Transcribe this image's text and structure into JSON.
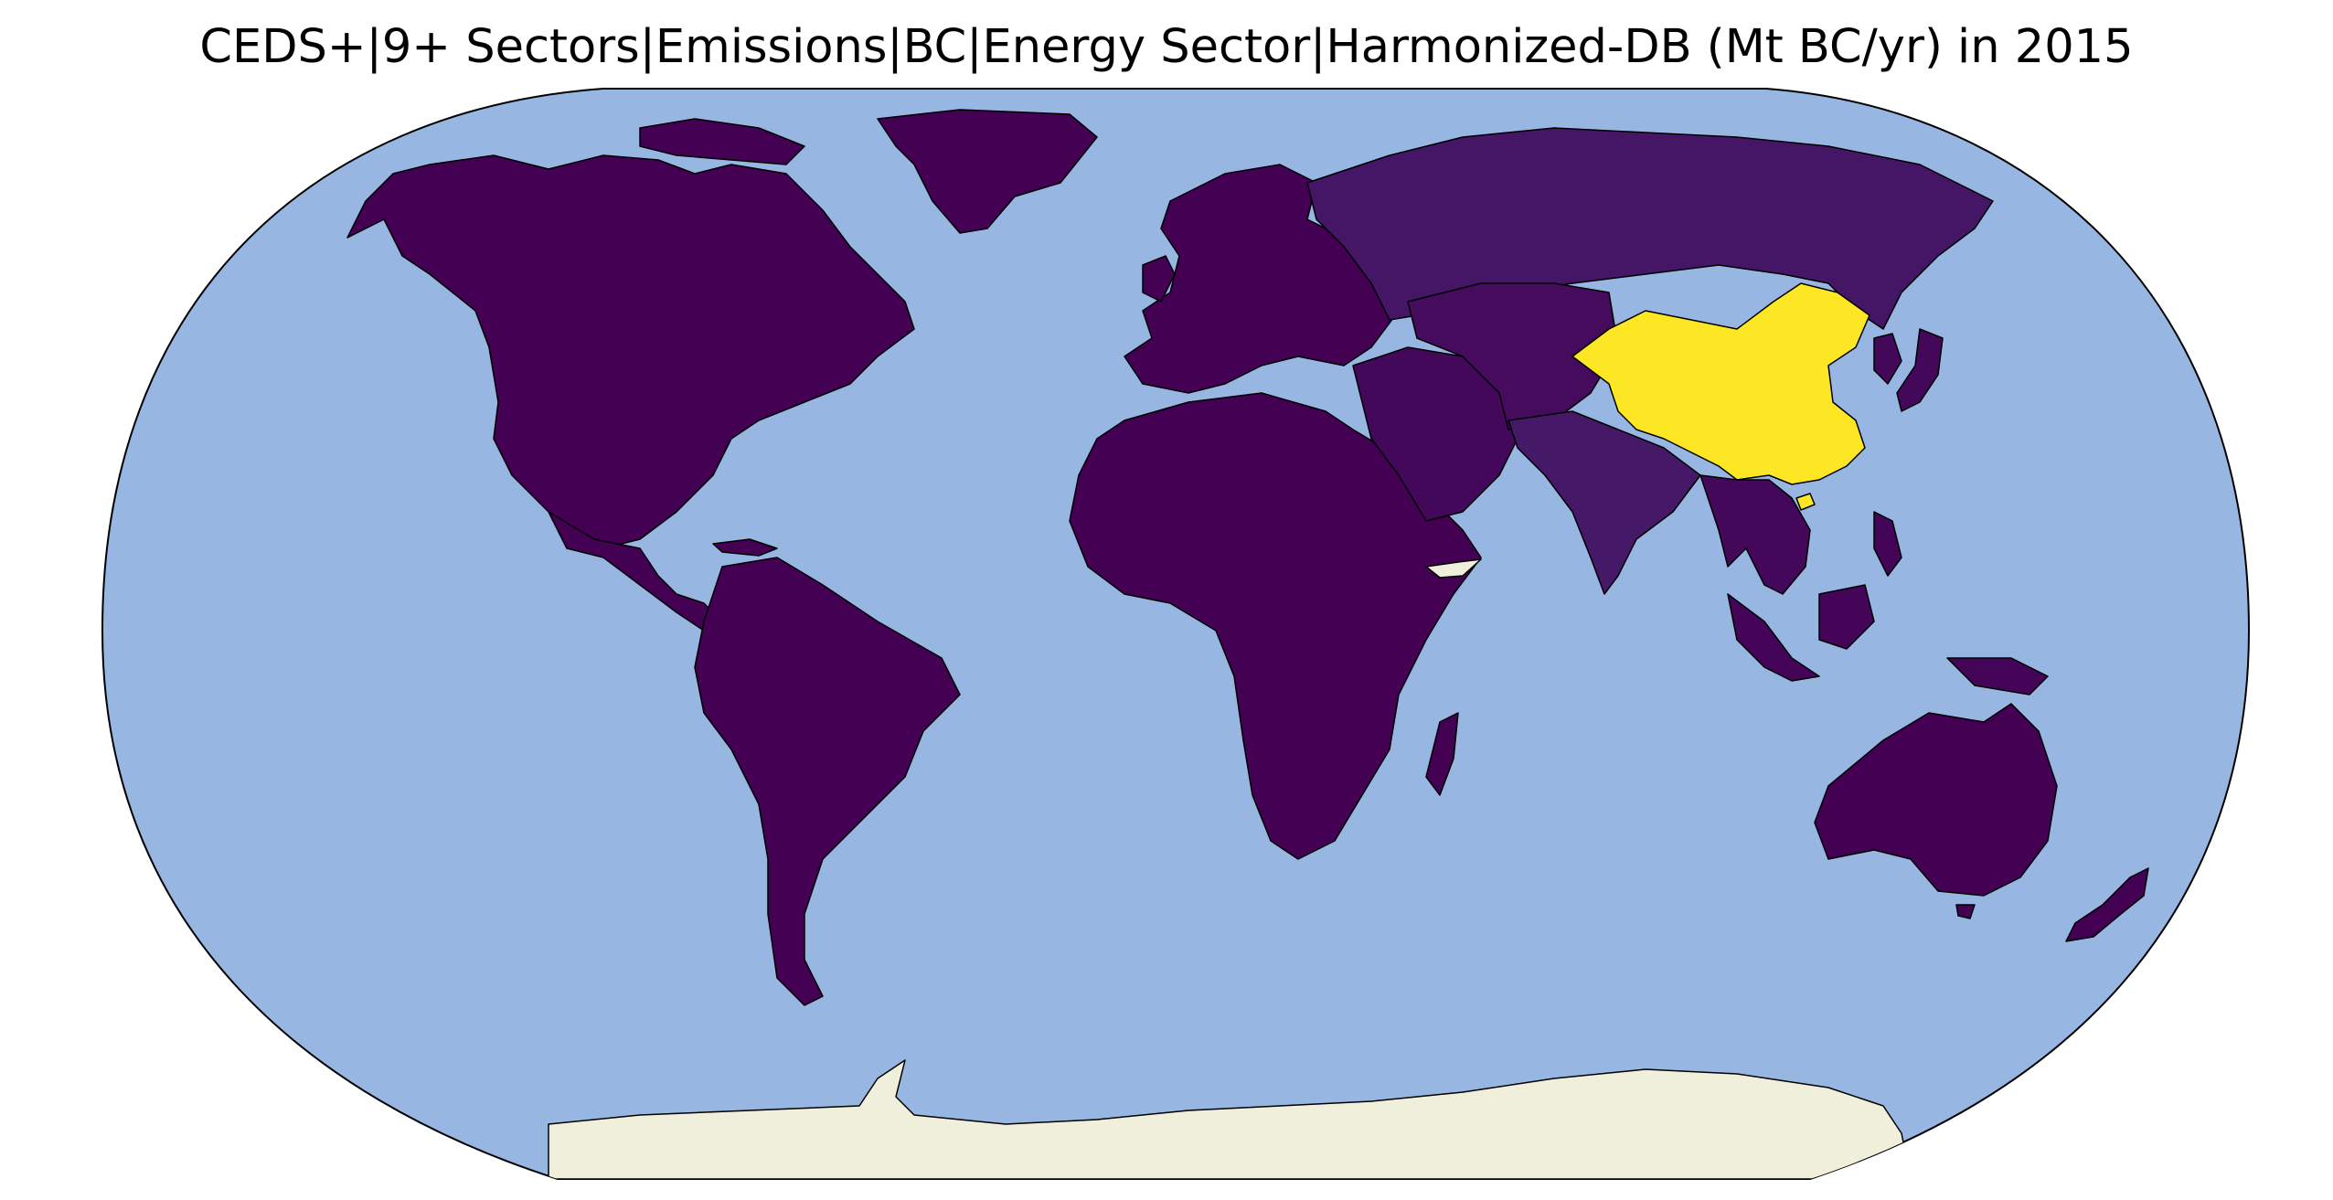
{
  "title": "CEDS+|9+ Sectors|Emissions|BC|Energy Sector|Harmonized-DB (Mt BC/yr) in 2015",
  "map": {
    "projection": "robinson",
    "ocean_color": "#97b6e1",
    "nodata_color": "#efefdb",
    "colormap": "viridis",
    "colorbar": "none",
    "regions": [
      {
        "name": "North America",
        "level": 0.0
      },
      {
        "name": "Greenland",
        "level": 0.0
      },
      {
        "name": "Central America & Caribbean",
        "level": 0.0
      },
      {
        "name": "South America",
        "level": 0.0
      },
      {
        "name": "Europe",
        "level": 0.0
      },
      {
        "name": "Africa",
        "level": 0.0
      },
      {
        "name": "Somalia",
        "level": null
      },
      {
        "name": "Madagascar",
        "level": 0.0
      },
      {
        "name": "Middle East",
        "level": 0.02
      },
      {
        "name": "Russia",
        "level": 0.06
      },
      {
        "name": "Central Asia",
        "level": 0.03
      },
      {
        "name": "India",
        "level": 0.07
      },
      {
        "name": "Southeast Asia",
        "level": 0.02
      },
      {
        "name": "China",
        "level": 1.0
      },
      {
        "name": "Korea & Japan",
        "level": 0.02
      },
      {
        "name": "Indonesia & Philippines",
        "level": 0.01
      },
      {
        "name": "Australia",
        "level": 0.0
      },
      {
        "name": "New Zealand",
        "level": 0.0
      },
      {
        "name": "Antarctica",
        "level": null
      }
    ]
  }
}
